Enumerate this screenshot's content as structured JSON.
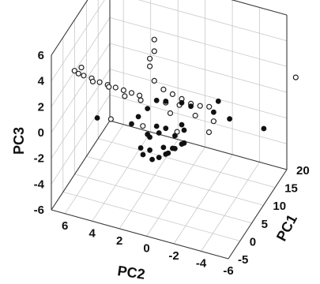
{
  "chart_data": {
    "type": "scatter",
    "title": "",
    "axes": {
      "x": {
        "label": "PC1",
        "range": [
          -5,
          20
        ],
        "ticks": [
          -5,
          0,
          5,
          10,
          15,
          20
        ],
        "tick_labels": [
          "-5",
          "0",
          "5",
          "10",
          "15",
          "20"
        ]
      },
      "y": {
        "label": "PC2",
        "range": [
          -6,
          7
        ],
        "ticks": [
          6,
          4,
          2,
          0,
          -2,
          -4,
          -6
        ],
        "tick_labels": [
          "6",
          "4",
          "2",
          "0",
          "-2",
          "-4",
          "-6"
        ]
      },
      "z": {
        "label": "PC3",
        "range": [
          -6,
          6
        ],
        "ticks": [
          6,
          4,
          2,
          0,
          -2,
          -4,
          -6
        ],
        "tick_labels": [
          "6",
          "4",
          "2",
          "0",
          "-2",
          "-4",
          "-6"
        ]
      }
    },
    "grid": true,
    "legend": "none",
    "series": [
      {
        "marker": "open-circle",
        "color": "#222222",
        "points": [
          [
            7,
            1.5,
            5.5
          ],
          [
            7,
            1.5,
            4.6
          ],
          [
            8,
            2.0,
            3.6
          ],
          [
            8,
            2.0,
            3.0
          ],
          [
            7,
            1.5,
            2.3
          ],
          [
            2,
            6.0,
            3.4
          ],
          [
            2,
            6.5,
            3.0
          ],
          [
            2.5,
            6.3,
            2.7
          ],
          [
            3,
            6.0,
            2.5
          ],
          [
            3.5,
            5.5,
            2.3
          ],
          [
            4,
            5.0,
            2.0
          ],
          [
            4.5,
            4.5,
            1.8
          ],
          [
            5,
            4.0,
            1.6
          ],
          [
            5.5,
            3.5,
            1.4
          ],
          [
            6,
            3.0,
            1.2
          ],
          [
            6.5,
            2.5,
            1.0
          ],
          [
            5,
            4.5,
            1.5
          ],
          [
            4,
            5.5,
            1.9
          ],
          [
            8,
            1.0,
            1.5
          ],
          [
            9,
            0.5,
            1.0
          ],
          [
            10,
            0.0,
            0.5
          ],
          [
            9,
            0.0,
            0.3
          ],
          [
            11,
            -0.5,
            0.0
          ],
          [
            12,
            -1.0,
            -0.3
          ],
          [
            13,
            -1.5,
            -0.5
          ],
          [
            10,
            -1.0,
            -0.5
          ],
          [
            6,
            3.5,
            0.8
          ],
          [
            7,
            2.5,
            0.5
          ],
          [
            9,
            1.0,
            0.2
          ],
          [
            8,
            0.5,
            -0.2
          ],
          [
            3,
            4.0,
            -0.3
          ],
          [
            5,
            2.0,
            -0.8
          ],
          [
            8,
            0.0,
            -1.5
          ],
          [
            10,
            -2.0,
            -1.5
          ],
          [
            12,
            -2.0,
            -1.2
          ],
          [
            18,
            -7.0,
            2.0
          ]
        ]
      },
      {
        "marker": "filled-circle",
        "color": "#111111",
        "points": [
          [
            8,
            1.5,
            0.5
          ],
          [
            9,
            1.0,
            0.3
          ],
          [
            10,
            0.0,
            0.2
          ],
          [
            11,
            -0.5,
            -0.2
          ],
          [
            14,
            -2.0,
            -0.2
          ],
          [
            7,
            2.0,
            0.0
          ],
          [
            6,
            2.5,
            -0.5
          ],
          [
            12,
            -2.0,
            -0.5
          ],
          [
            13,
            -3.0,
            -1.0
          ],
          [
            3,
            5.0,
            -0.5
          ],
          [
            6,
            3.0,
            -1.2
          ],
          [
            8,
            1.5,
            -1.5
          ],
          [
            9,
            1.0,
            -1.8
          ],
          [
            10,
            0.0,
            -1.5
          ],
          [
            7,
            2.0,
            -2.0
          ],
          [
            8,
            2.0,
            -2.5
          ],
          [
            9,
            1.5,
            -2.3
          ],
          [
            10,
            0.5,
            -2.5
          ],
          [
            11,
            0.0,
            -2.2
          ],
          [
            8,
            1.0,
            -3.0
          ],
          [
            9,
            0.5,
            -3.2
          ],
          [
            10,
            0.0,
            -3.0
          ],
          [
            7,
            2.5,
            -3.2
          ],
          [
            8,
            2.0,
            -3.5
          ],
          [
            9,
            1.0,
            -3.8
          ],
          [
            10,
            0.5,
            -3.5
          ],
          [
            11,
            0.0,
            -3.2
          ],
          [
            8,
            2.5,
            -4.0
          ],
          [
            9,
            1.5,
            -4.2
          ],
          [
            10,
            1.0,
            -4.0
          ],
          [
            9,
            2.0,
            -4.5
          ],
          [
            16,
            -5.0,
            -2.0
          ]
        ]
      }
    ]
  }
}
